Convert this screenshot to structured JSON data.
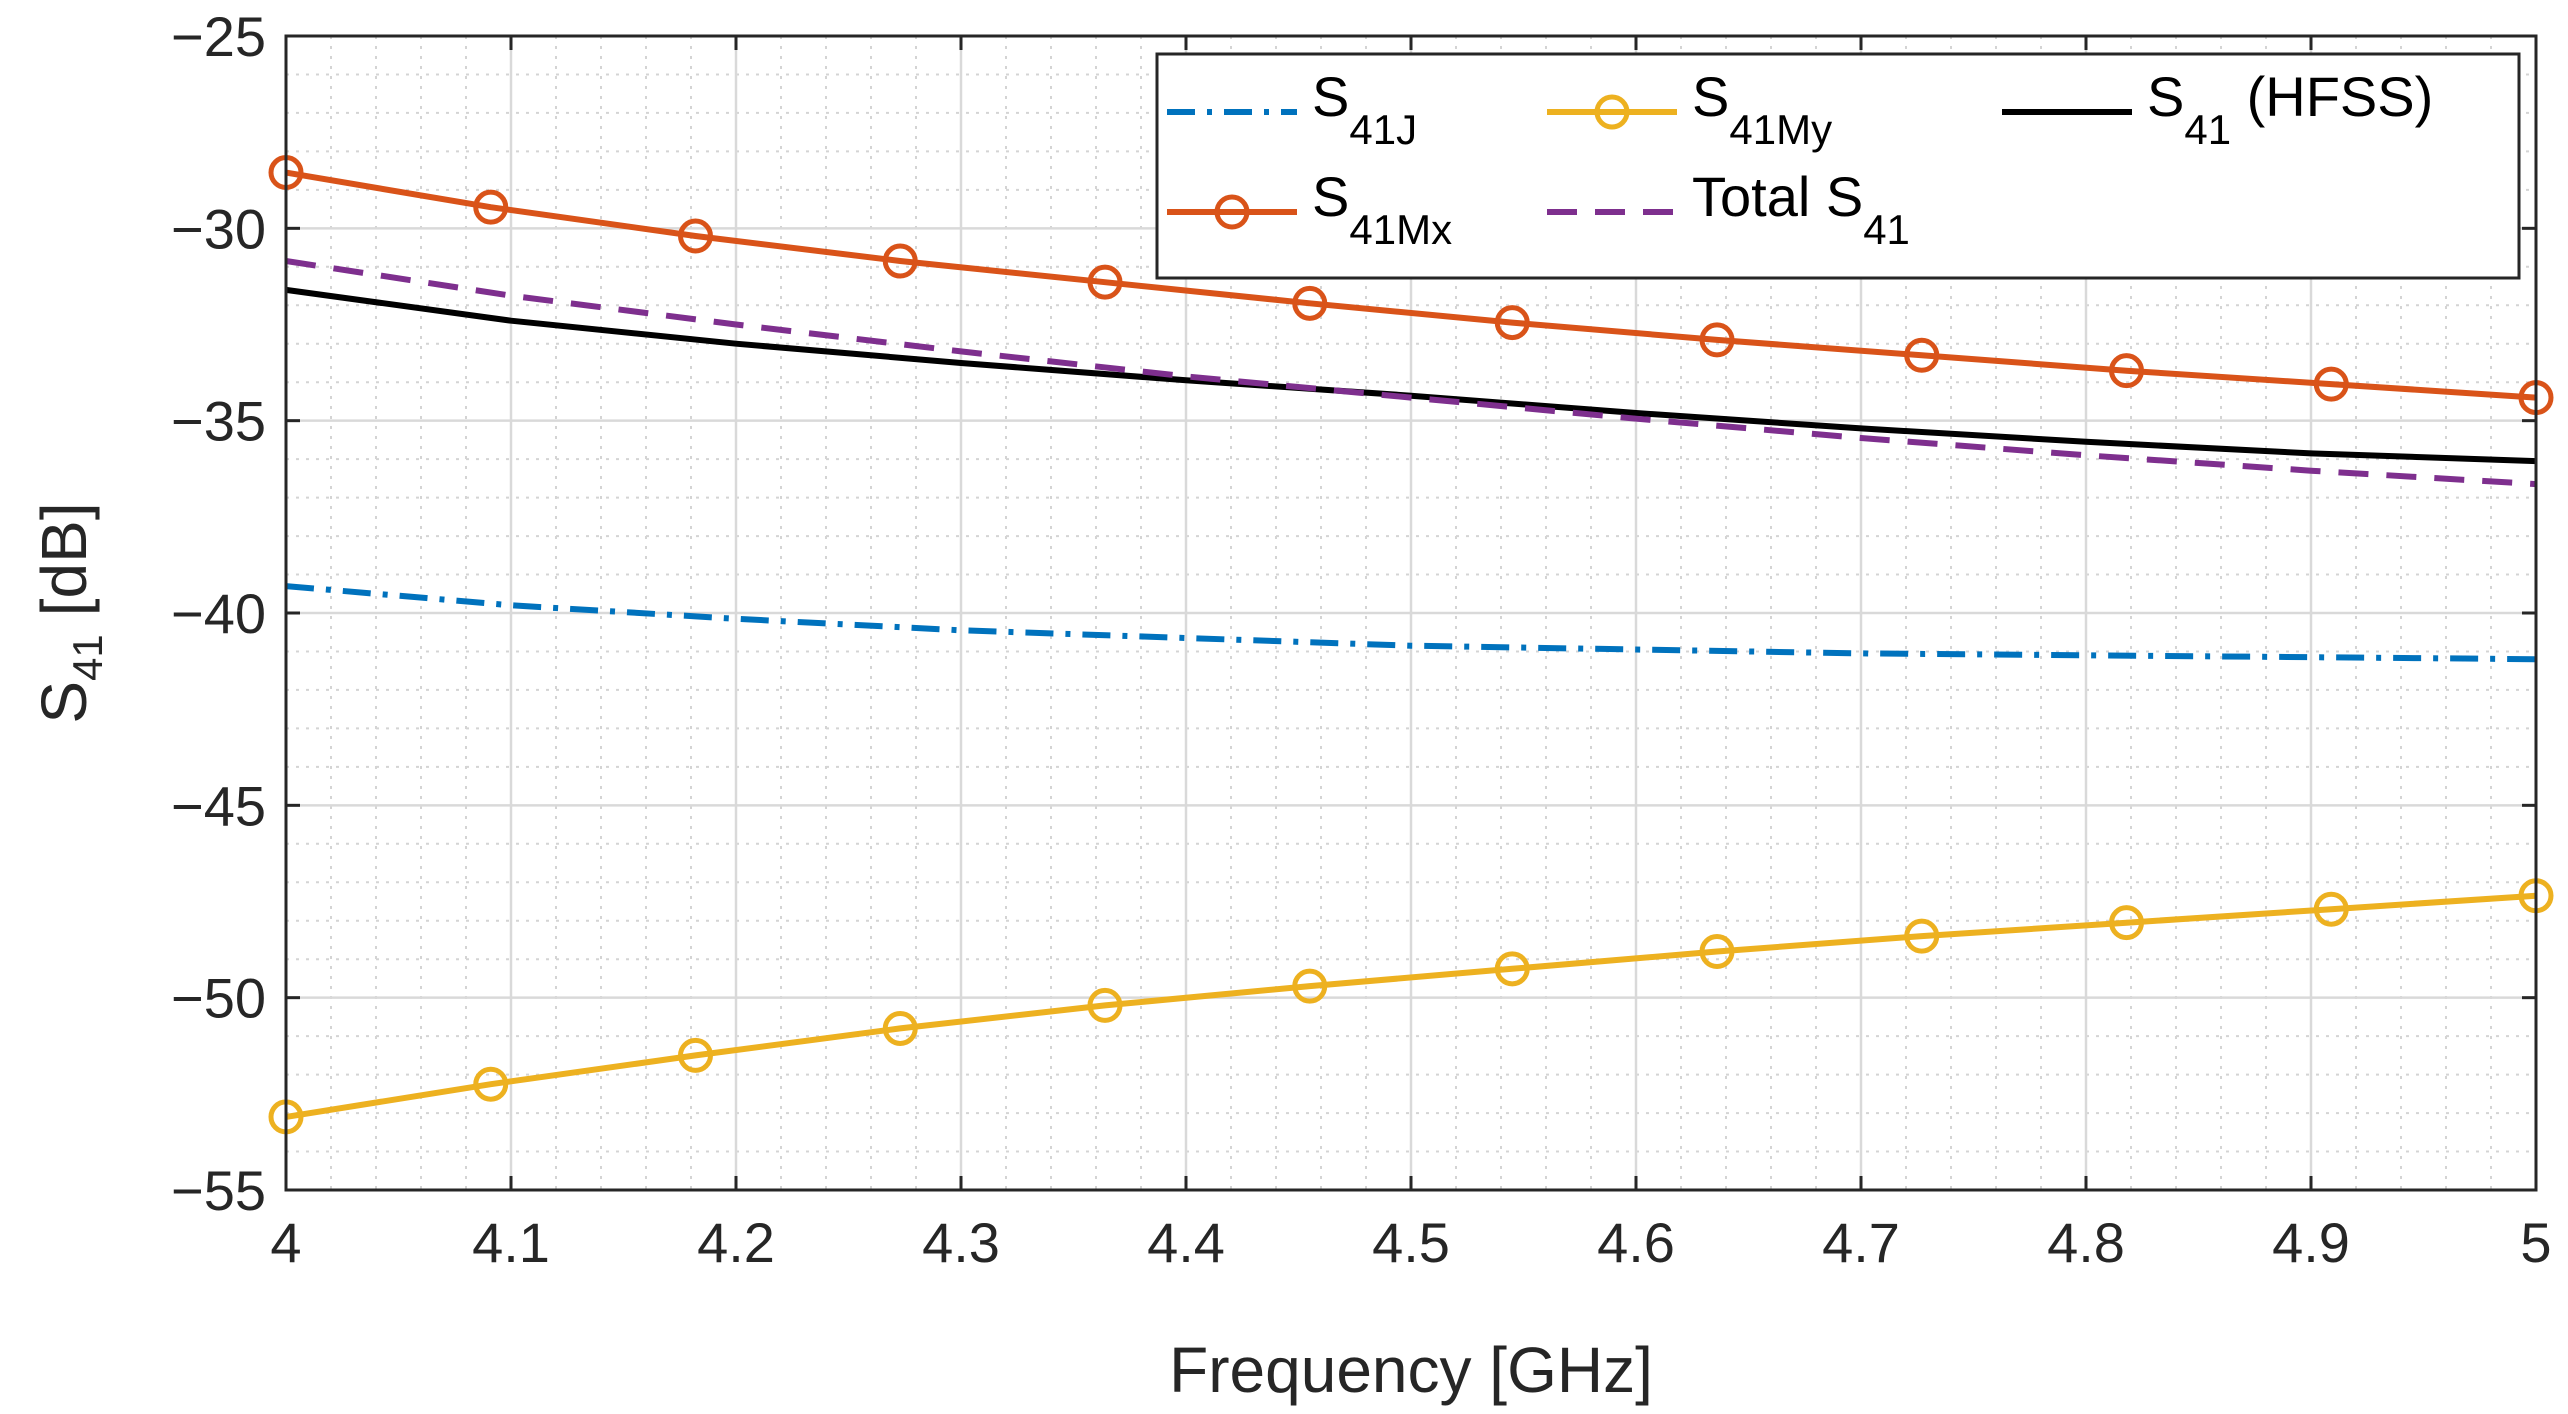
{
  "chart_data": {
    "type": "line",
    "xlabel": "Frequency [GHz]",
    "ylabel": {
      "base": "S",
      "sub": "41",
      "suffix": "[dB]"
    },
    "xlim": [
      4,
      5
    ],
    "ylim": [
      -55,
      -25
    ],
    "xticks": [
      4,
      4.1,
      4.2,
      4.3,
      4.4,
      4.5,
      4.6,
      4.7,
      4.8,
      4.9,
      5
    ],
    "xtick_labels": [
      "4",
      "4.1",
      "4.2",
      "4.3",
      "4.4",
      "4.5",
      "4.6",
      "4.7",
      "4.8",
      "4.9",
      "5"
    ],
    "yticks": [
      -55,
      -50,
      -45,
      -40,
      -35,
      -30,
      -25
    ],
    "ytick_labels": [
      "−55",
      "−50",
      "−45",
      "−40",
      "−35",
      "−30",
      "−25"
    ],
    "grid": {
      "major": true,
      "minor": true
    },
    "legend_position": "top-right",
    "series": [
      {
        "key": "s41j",
        "label": {
          "base": "S",
          "sub": "41J"
        },
        "color": "#0072BD",
        "dash": "dash-dot",
        "marker": "none",
        "x": [
          4.0,
          4.1,
          4.2,
          4.3,
          4.4,
          4.5,
          4.6,
          4.7,
          4.8,
          4.9,
          5.0
        ],
        "y": [
          -39.3,
          -39.8,
          -40.15,
          -40.45,
          -40.65,
          -40.85,
          -40.95,
          -41.05,
          -41.1,
          -41.15,
          -41.2
        ]
      },
      {
        "key": "s41my",
        "label": {
          "base": "S",
          "sub": "41My"
        },
        "color": "#EDB120",
        "dash": "solid",
        "marker": "circle",
        "x": [
          4.0,
          4.091,
          4.182,
          4.273,
          4.364,
          4.455,
          4.545,
          4.636,
          4.727,
          4.818,
          4.909,
          5.0
        ],
        "y": [
          -53.1,
          -52.25,
          -51.5,
          -50.8,
          -50.2,
          -49.7,
          -49.25,
          -48.8,
          -48.4,
          -48.05,
          -47.7,
          -47.35
        ]
      },
      {
        "key": "s41hfss",
        "label": {
          "base": "S",
          "sub": "41",
          "suffix": " (HFSS)"
        },
        "color": "#000000",
        "dash": "solid",
        "marker": "none",
        "x": [
          4.0,
          4.1,
          4.2,
          4.3,
          4.4,
          4.5,
          4.6,
          4.7,
          4.8,
          4.9,
          5.0
        ],
        "y": [
          -31.6,
          -32.4,
          -33.0,
          -33.5,
          -33.95,
          -34.35,
          -34.8,
          -35.2,
          -35.55,
          -35.85,
          -36.05
        ]
      },
      {
        "key": "s41mx",
        "label": {
          "base": "S",
          "sub": "41Mx"
        },
        "color": "#D95319",
        "dash": "solid",
        "marker": "circle",
        "x": [
          4.0,
          4.091,
          4.182,
          4.273,
          4.364,
          4.455,
          4.545,
          4.636,
          4.727,
          4.818,
          4.909,
          5.0
        ],
        "y": [
          -28.55,
          -29.45,
          -30.2,
          -30.85,
          -31.4,
          -31.95,
          -32.45,
          -32.9,
          -33.3,
          -33.7,
          -34.05,
          -34.4
        ]
      },
      {
        "key": "total",
        "label": {
          "base": "Total S",
          "sub": "41"
        },
        "color": "#7E2F8E",
        "dash": "dashed",
        "marker": "none",
        "x": [
          4.0,
          4.1,
          4.2,
          4.3,
          4.4,
          4.5,
          4.6,
          4.7,
          4.8,
          4.9,
          5.0
        ],
        "y": [
          -30.85,
          -31.75,
          -32.5,
          -33.2,
          -33.85,
          -34.4,
          -34.95,
          -35.45,
          -35.9,
          -36.3,
          -36.65
        ]
      }
    ]
  }
}
